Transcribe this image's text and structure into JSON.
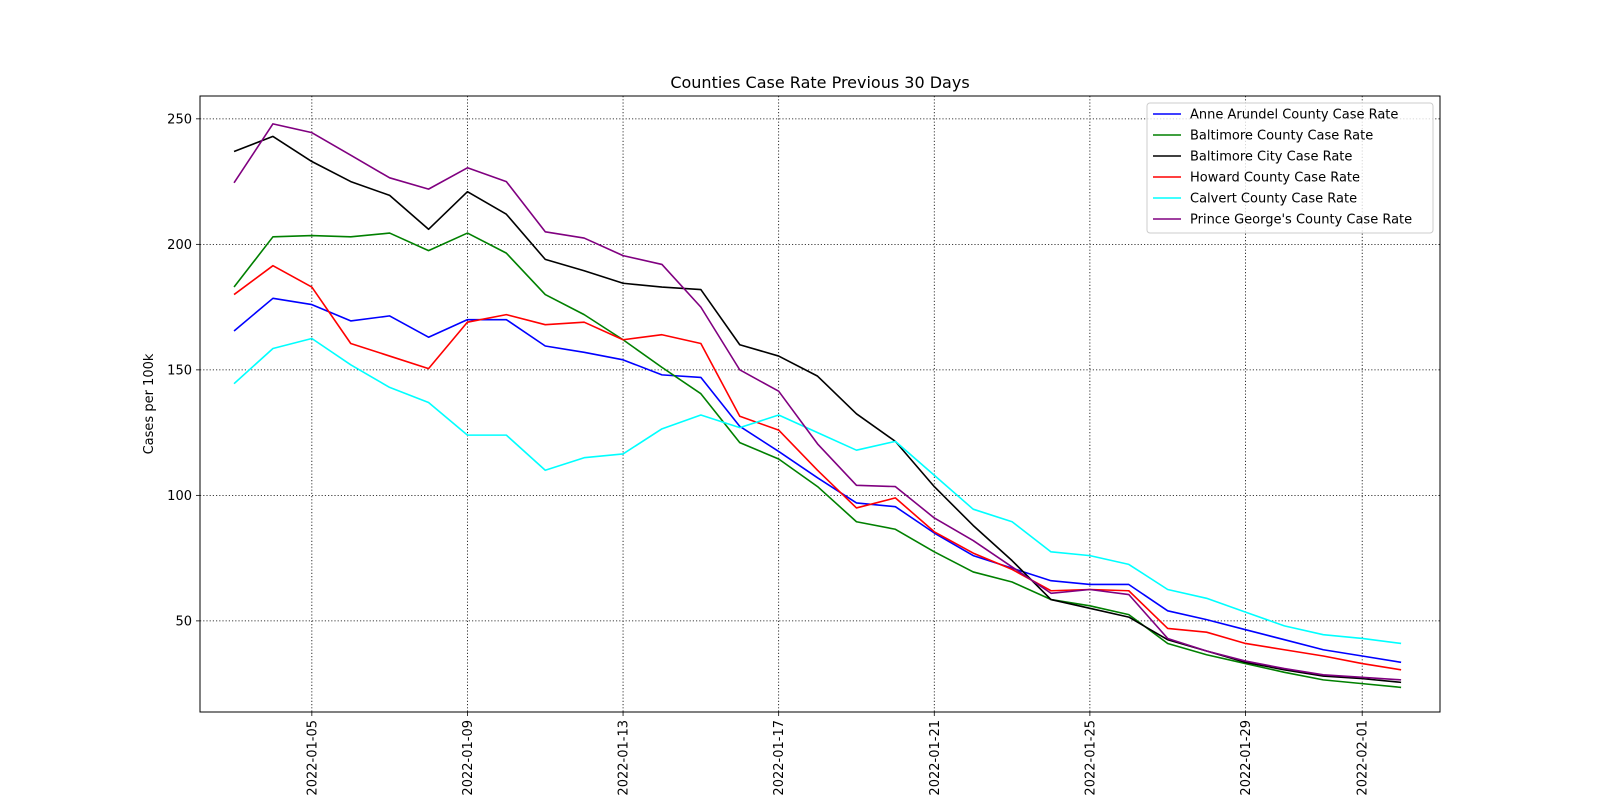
{
  "chart_data": {
    "type": "line",
    "title": "Counties Case Rate Previous 30 Days",
    "xlabel": "",
    "ylabel": "Cases per 100k",
    "x": [
      "2022-01-03",
      "2022-01-04",
      "2022-01-05",
      "2022-01-06",
      "2022-01-07",
      "2022-01-08",
      "2022-01-09",
      "2022-01-10",
      "2022-01-11",
      "2022-01-12",
      "2022-01-13",
      "2022-01-14",
      "2022-01-15",
      "2022-01-16",
      "2022-01-17",
      "2022-01-18",
      "2022-01-19",
      "2022-01-20",
      "2022-01-21",
      "2022-01-22",
      "2022-01-23",
      "2022-01-24",
      "2022-01-25",
      "2022-01-26",
      "2022-01-27",
      "2022-01-28",
      "2022-01-29",
      "2022-01-30",
      "2022-01-31",
      "2022-02-01",
      "2022-02-02"
    ],
    "xlim": [
      "2022-01-02T03:00",
      "2022-02-03T00:00"
    ],
    "x_ticks": [
      "2022-01-05",
      "2022-01-09",
      "2022-01-13",
      "2022-01-17",
      "2022-01-21",
      "2022-01-25",
      "2022-01-29",
      "2022-02-01"
    ],
    "ylim": [
      13.7,
      259.1
    ],
    "y_ticks": [
      50,
      100,
      150,
      200,
      250
    ],
    "grid": true,
    "legend_position": "top-right",
    "series": [
      {
        "name": "Anne Arundel County Case Rate",
        "color": "#0000ff",
        "values": [
          165.5,
          178.5,
          176.0,
          169.5,
          171.5,
          163.0,
          170.0,
          170.0,
          159.5,
          157.0,
          154.0,
          148.0,
          147.0,
          127.5,
          117.5,
          107.0,
          97.0,
          95.5,
          85.0,
          76.0,
          71.0,
          66.0,
          64.5,
          64.5,
          54.0,
          50.5,
          46.5,
          42.5,
          38.5,
          36.0,
          33.5
        ]
      },
      {
        "name": "Baltimore County Case Rate",
        "color": "#008000",
        "values": [
          183.0,
          203.0,
          203.5,
          203.0,
          204.5,
          197.5,
          204.5,
          196.5,
          180.0,
          172.0,
          162.0,
          151.0,
          140.5,
          121.0,
          114.5,
          103.5,
          89.5,
          86.5,
          77.5,
          69.5,
          65.5,
          58.5,
          56.0,
          52.5,
          41.0,
          36.5,
          33.0,
          29.5,
          26.5,
          25.0,
          23.5
        ]
      },
      {
        "name": "Baltimore City Case Rate",
        "color": "#000000",
        "values": [
          237.0,
          243.0,
          233.0,
          225.0,
          219.5,
          206.0,
          221.0,
          212.0,
          194.0,
          189.5,
          184.5,
          183.0,
          182.0,
          160.0,
          155.5,
          147.5,
          132.5,
          121.5,
          103.5,
          88.0,
          74.0,
          58.5,
          55.0,
          51.5,
          42.5,
          38.0,
          33.5,
          30.5,
          28.0,
          27.0,
          25.5
        ]
      },
      {
        "name": "Howard County Case Rate",
        "color": "#ff0000",
        "values": [
          180.0,
          191.5,
          183.0,
          160.5,
          155.5,
          150.5,
          169.0,
          172.0,
          168.0,
          169.0,
          162.0,
          164.0,
          160.5,
          131.5,
          126.0,
          110.0,
          95.0,
          99.0,
          85.5,
          77.0,
          70.5,
          62.0,
          62.5,
          62.0,
          47.0,
          45.5,
          41.0,
          38.5,
          36.0,
          33.0,
          30.5
        ]
      },
      {
        "name": "Calvert County Case Rate",
        "color": "#00ffff",
        "values": [
          144.5,
          158.5,
          162.5,
          152.0,
          143.0,
          137.0,
          124.0,
          124.0,
          110.0,
          115.0,
          116.5,
          126.5,
          132.0,
          127.0,
          132.0,
          125.0,
          118.0,
          121.5,
          108.0,
          94.5,
          89.5,
          77.5,
          76.0,
          72.5,
          62.5,
          59.0,
          53.5,
          48.0,
          44.5,
          43.0,
          41.0
        ]
      },
      {
        "name": "Prince George's County Case Rate",
        "color": "#800080",
        "values": [
          224.5,
          248.0,
          244.5,
          235.5,
          226.5,
          222.0,
          230.5,
          225.0,
          205.0,
          202.5,
          195.5,
          192.0,
          175.0,
          150.0,
          141.5,
          120.5,
          104.0,
          103.5,
          91.0,
          82.0,
          71.5,
          61.0,
          62.5,
          60.5,
          43.0,
          38.0,
          34.0,
          31.0,
          28.5,
          27.5,
          26.5
        ]
      }
    ]
  }
}
